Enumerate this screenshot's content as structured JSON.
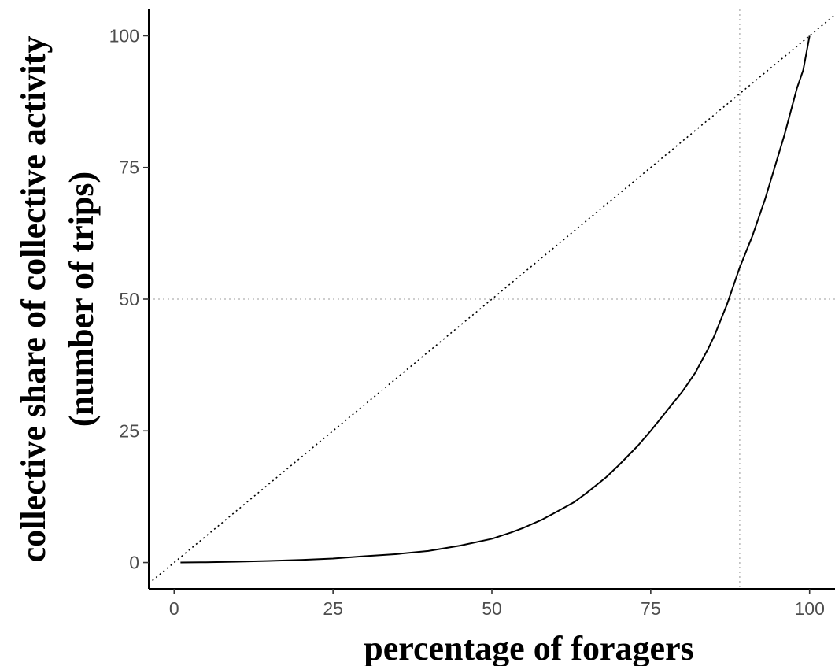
{
  "chart_data": {
    "type": "line",
    "xlabel": "percentage of foragers",
    "ylabel_line1": "collective share of collective activity",
    "ylabel_line2": "(number of trips)",
    "xlim": [
      -4,
      104
    ],
    "ylim": [
      -5,
      105
    ],
    "x_ticks": [
      0,
      25,
      50,
      75,
      100
    ],
    "y_ticks": [
      0,
      25,
      50,
      75,
      100
    ],
    "x_tick_labels": [
      "0",
      "25",
      "50",
      "75",
      "100"
    ],
    "y_tick_labels": [
      "0",
      "25",
      "50",
      "75",
      "100"
    ],
    "grid": false,
    "series": [
      {
        "x": [
          1,
          5,
          10,
          15,
          20,
          25,
          30,
          35,
          40,
          45,
          50,
          53,
          55,
          58,
          60,
          63,
          65,
          68,
          70,
          73,
          75,
          78,
          80,
          82,
          84,
          85,
          86,
          87,
          88,
          89,
          90,
          91,
          92,
          93,
          94,
          95,
          96,
          97,
          98,
          99,
          100
        ],
        "y": [
          0,
          0.05,
          0.15,
          0.3,
          0.5,
          0.75,
          1.2,
          1.6,
          2.2,
          3.2,
          4.5,
          5.7,
          6.6,
          8.2,
          9.5,
          11.5,
          13.3,
          16.2,
          18.5,
          22.2,
          25.0,
          29.5,
          32.5,
          36.0,
          40.5,
          43.0,
          46.0,
          49.0,
          52.5,
          56.0,
          59.0,
          62.0,
          65.5,
          69.0,
          73.0,
          77.0,
          81.0,
          85.5,
          90.0,
          93.5,
          100
        ]
      }
    ],
    "reference_line": {
      "style": "dotted",
      "color": "#000000",
      "x": [
        -4,
        104
      ],
      "y": [
        -4,
        104
      ]
    },
    "vertical_reference": {
      "x": 89,
      "style": "dotted",
      "color": "#bdbdbd"
    },
    "horizontal_reference": {
      "y": 50,
      "style": "dotted",
      "color": "#bdbdbd"
    },
    "colors": {
      "line": "#000000",
      "tick_label": "#4d4d4d",
      "reference": "#bdbdbd"
    }
  }
}
